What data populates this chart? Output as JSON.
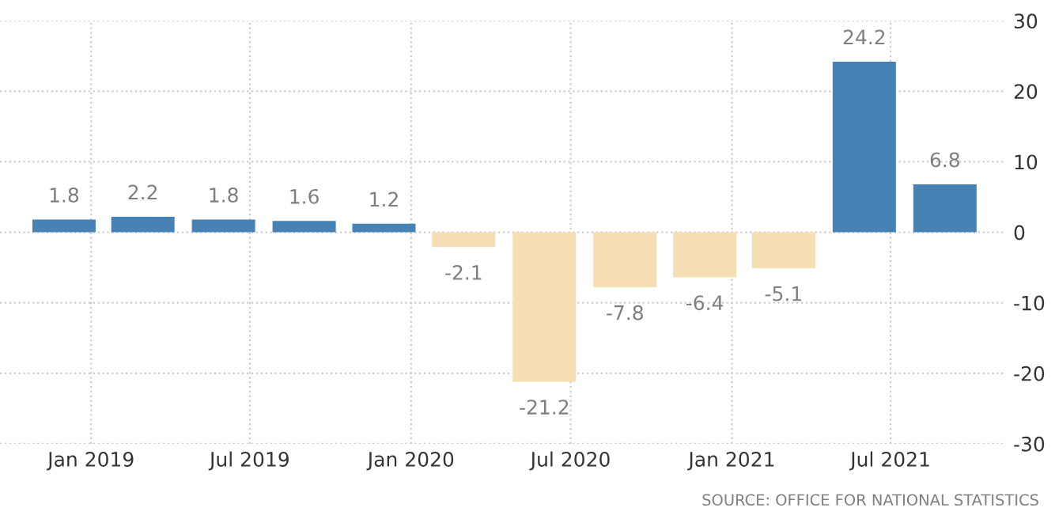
{
  "chart_data": {
    "type": "bar",
    "x": [
      "2018-12-01",
      "2019-03-01",
      "2019-06-01",
      "2019-09-01",
      "2019-12-01",
      "2020-03-01",
      "2020-06-01",
      "2020-09-01",
      "2020-12-01",
      "2021-03-01",
      "2021-06-01",
      "2021-09-01"
    ],
    "values": [
      1.8,
      2.2,
      1.8,
      1.6,
      1.2,
      -2.1,
      -21.2,
      -7.8,
      -6.4,
      -5.1,
      24.2,
      6.8
    ],
    "colors": [
      "#4682b4",
      "#4682b4",
      "#4682b4",
      "#4682b4",
      "#4682b4",
      "#f5deb3",
      "#f5deb3",
      "#f5deb3",
      "#f5deb3",
      "#f5deb3",
      "#4682b4",
      "#4682b4"
    ],
    "data_labels": true,
    "xlim": [
      "2018-09-19",
      "2021-11-09"
    ],
    "xticks": [
      {
        "value": "2019-01-01",
        "label": "Jan 2019"
      },
      {
        "value": "2019-07-01",
        "label": "Jul 2019"
      },
      {
        "value": "2020-01-01",
        "label": "Jan 2020"
      },
      {
        "value": "2020-07-01",
        "label": "Jul 2020"
      },
      {
        "value": "2021-01-01",
        "label": "Jan 2021"
      },
      {
        "value": "2021-07-01",
        "label": "Jul 2021"
      }
    ],
    "ylim": [
      -30,
      30
    ],
    "yticks": [
      -30,
      -20,
      -10,
      0,
      10,
      20,
      30
    ],
    "grid": true,
    "legend": false,
    "annotations": [
      "SOURCE: OFFICE FOR NATIONAL STATISTICS"
    ]
  }
}
